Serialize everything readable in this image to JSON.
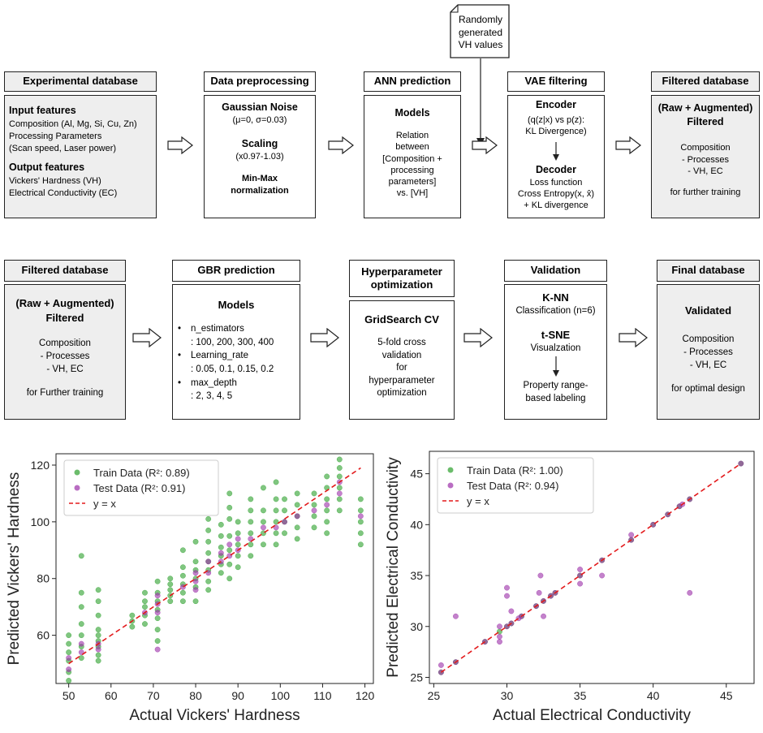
{
  "row1": {
    "random_box": "Randomly generated VH values",
    "experimental": {
      "header": "Experimental database",
      "input_title": "Input features",
      "input_lines": [
        "Composition (Al, Mg, Si, Cu, Zn)",
        "Processing Parameters",
        "(Scan speed, Laser power)"
      ],
      "output_title": "Output features",
      "output_lines": [
        "Vickers' Hardness (VH)",
        "Electrical Conductivity (EC)"
      ]
    },
    "preprocessing": {
      "header": "Data preprocessing",
      "noise_title": "Gaussian Noise",
      "noise_params": "(μ=0, σ=0.03)",
      "scaling_title": "Scaling",
      "scaling_params": "(x0.97-1.03)",
      "minmax_line1": "Min-Max",
      "minmax_line2": "normalization"
    },
    "ann": {
      "header": "ANN prediction",
      "models": "Models",
      "lines": [
        "Relation",
        "between",
        "[Composition +",
        "processing",
        "parameters]",
        "vs. [VH]"
      ]
    },
    "vae": {
      "header": "VAE filtering",
      "encoder": "Encoder",
      "encoder_lines": [
        "(q(z|x) vs p(z):",
        "KL Divergence)"
      ],
      "decoder": "Decoder",
      "decoder_lines": [
        "Loss function",
        "Cross Entropy(x, x̂)",
        "+ KL divergence"
      ]
    },
    "filtered": {
      "header": "Filtered database",
      "title1": "(Raw + Augmented)",
      "title2": "Filtered",
      "lines": [
        "Composition",
        "- Processes",
        "- VH, EC"
      ],
      "footer": "for further training"
    }
  },
  "row2": {
    "filtered": {
      "header": "Filtered database",
      "title1": "(Raw + Augmented)",
      "title2": "Filtered",
      "lines": [
        "Composition",
        "- Processes",
        "- VH, EC"
      ],
      "footer": "for Further training"
    },
    "gbr": {
      "header": "GBR prediction",
      "models": "Models",
      "bullets": [
        {
          "name": "n_estimators",
          "values": ": 100, 200, 300, 400"
        },
        {
          "name": "Learning_rate",
          "values": ": 0.05, 0.1, 0.15, 0.2"
        },
        {
          "name": "max_depth",
          "values": ": 2, 3, 4, 5"
        }
      ]
    },
    "hyper": {
      "header_line1": "Hyperparameter",
      "header_line2": "optimization",
      "title": "GridSearch CV",
      "lines": [
        "5-fold cross",
        "validation",
        "for",
        "hyperparameter",
        "optimization"
      ]
    },
    "validation": {
      "header": "Validation",
      "knn": "K-NN",
      "knn_sub": "Classification (n=6)",
      "tsne": "t-SNE",
      "tsne_sub": "Visualzation",
      "label_lines": [
        "Property range-",
        "based labeling"
      ]
    },
    "final": {
      "header": "Final database",
      "title": "Validated",
      "lines": [
        "Composition",
        "- Processes",
        "- VH, EC"
      ],
      "footer": "for optimal design"
    }
  },
  "chart_data": [
    {
      "type": "scatter",
      "xlabel": "Actual Vickers' Hardness",
      "ylabel": "Predicted Vickers' Hardness",
      "xlim": [
        47,
        122
      ],
      "ylim": [
        43,
        124
      ],
      "xticks": [
        50,
        60,
        70,
        80,
        90,
        100,
        110,
        120
      ],
      "yticks": [
        60,
        80,
        100,
        120
      ],
      "legend": [
        "Train Data (R²: 0.89)",
        "Test Data (R²: 0.91)",
        "y = x"
      ],
      "legend_position": "top-left",
      "colors": {
        "train": "#2ca02c",
        "test": "#9b2fa8",
        "line": "#e31a1c"
      },
      "x_levels": [
        50,
        53,
        57,
        65,
        68,
        71,
        74,
        77,
        80,
        83,
        86,
        88,
        90,
        93,
        96,
        99,
        101,
        104,
        108,
        111,
        114,
        119
      ],
      "series": [
        {
          "name": "Train Data (R²: 0.89)",
          "points": [
            [
              50,
              44
            ],
            [
              50,
              47
            ],
            [
              50,
              51
            ],
            [
              50,
              54
            ],
            [
              50,
              57
            ],
            [
              50,
              60
            ],
            [
              53,
              52
            ],
            [
              53,
              56
            ],
            [
              53,
              60
            ],
            [
              53,
              64
            ],
            [
              53,
              70
            ],
            [
              53,
              75
            ],
            [
              53,
              88
            ],
            [
              57,
              51
            ],
            [
              57,
              53
            ],
            [
              57,
              56
            ],
            [
              57,
              58
            ],
            [
              57,
              60
            ],
            [
              57,
              62
            ],
            [
              57,
              67
            ],
            [
              57,
              72
            ],
            [
              57,
              76
            ],
            [
              65,
              63
            ],
            [
              65,
              65
            ],
            [
              65,
              67
            ],
            [
              68,
              64
            ],
            [
              68,
              67
            ],
            [
              68,
              70
            ],
            [
              68,
              72
            ],
            [
              68,
              75
            ],
            [
              71,
              58
            ],
            [
              71,
              62
            ],
            [
              71,
              66
            ],
            [
              71,
              69
            ],
            [
              71,
              72
            ],
            [
              71,
              75
            ],
            [
              71,
              79
            ],
            [
              74,
              72
            ],
            [
              74,
              74
            ],
            [
              74,
              76
            ],
            [
              74,
              78
            ],
            [
              74,
              80
            ],
            [
              77,
              72
            ],
            [
              77,
              75
            ],
            [
              77,
              78
            ],
            [
              77,
              81
            ],
            [
              77,
              84
            ],
            [
              77,
              90
            ],
            [
              80,
              72
            ],
            [
              80,
              77
            ],
            [
              80,
              80
            ],
            [
              80,
              83
            ],
            [
              80,
              86
            ],
            [
              80,
              93
            ],
            [
              83,
              76
            ],
            [
              83,
              79
            ],
            [
              83,
              83
            ],
            [
              83,
              86
            ],
            [
              83,
              89
            ],
            [
              83,
              93
            ],
            [
              83,
              97
            ],
            [
              83,
              101
            ],
            [
              86,
              82
            ],
            [
              86,
              85
            ],
            [
              86,
              88
            ],
            [
              86,
              91
            ],
            [
              86,
              95
            ],
            [
              86,
              99
            ],
            [
              88,
              80
            ],
            [
              88,
              85
            ],
            [
              88,
              90
            ],
            [
              88,
              95
            ],
            [
              88,
              101
            ],
            [
              88,
              105
            ],
            [
              88,
              110
            ],
            [
              90,
              84
            ],
            [
              90,
              88
            ],
            [
              90,
              92
            ],
            [
              90,
              96
            ],
            [
              90,
              100
            ],
            [
              93,
              88
            ],
            [
              93,
              92
            ],
            [
              93,
              96
            ],
            [
              93,
              100
            ],
            [
              93,
              104
            ],
            [
              93,
              108
            ],
            [
              96,
              92
            ],
            [
              96,
              96
            ],
            [
              96,
              100
            ],
            [
              96,
              104
            ],
            [
              96,
              112
            ],
            [
              99,
              92
            ],
            [
              99,
              96
            ],
            [
              99,
              100
            ],
            [
              99,
              104
            ],
            [
              99,
              108
            ],
            [
              99,
              114
            ],
            [
              101,
              96
            ],
            [
              101,
              100
            ],
            [
              101,
              104
            ],
            [
              101,
              108
            ],
            [
              104,
              94
            ],
            [
              104,
              98
            ],
            [
              104,
              102
            ],
            [
              104,
              106
            ],
            [
              104,
              110
            ],
            [
              108,
              98
            ],
            [
              108,
              102
            ],
            [
              108,
              106
            ],
            [
              108,
              110
            ],
            [
              111,
              96
            ],
            [
              111,
              100
            ],
            [
              111,
              104
            ],
            [
              111,
              108
            ],
            [
              111,
              112
            ],
            [
              111,
              116
            ],
            [
              114,
              104
            ],
            [
              114,
              108
            ],
            [
              114,
              112
            ],
            [
              114,
              116
            ],
            [
              114,
              119
            ],
            [
              114,
              122
            ],
            [
              119,
              92
            ],
            [
              119,
              96
            ],
            [
              119,
              100
            ],
            [
              119,
              104
            ],
            [
              119,
              108
            ]
          ]
        },
        {
          "name": "Test Data (R²: 0.91)",
          "points": [
            [
              50,
              48
            ],
            [
              50,
              52
            ],
            [
              53,
              54
            ],
            [
              53,
              57
            ],
            [
              57,
              55
            ],
            [
              57,
              57
            ],
            [
              68,
              68
            ],
            [
              71,
              55
            ],
            [
              71,
              68
            ],
            [
              71,
              71
            ],
            [
              71,
              74
            ],
            [
              77,
              77
            ],
            [
              80,
              76
            ],
            [
              80,
              79
            ],
            [
              80,
              82
            ],
            [
              83,
              82
            ],
            [
              83,
              86
            ],
            [
              86,
              86
            ],
            [
              86,
              89
            ],
            [
              88,
              88
            ],
            [
              88,
              92
            ],
            [
              90,
              90
            ],
            [
              90,
              94
            ],
            [
              93,
              94
            ],
            [
              96,
              98
            ],
            [
              99,
              98
            ],
            [
              101,
              100
            ],
            [
              104,
              102
            ],
            [
              108,
              104
            ],
            [
              111,
              106
            ],
            [
              114,
              110
            ],
            [
              114,
              114
            ],
            [
              119,
              102
            ]
          ]
        }
      ],
      "fit_line": [
        [
          50,
          50
        ],
        [
          119,
          119
        ]
      ]
    },
    {
      "type": "scatter",
      "xlabel": "Actual Electrical Conductivity",
      "ylabel": "Predicted Electrical Conductivity",
      "xlim": [
        24.7,
        46.9
      ],
      "ylim": [
        24.4,
        47.2
      ],
      "xticks": [
        25,
        30,
        35,
        40,
        45
      ],
      "yticks": [
        25,
        30,
        35,
        40,
        45
      ],
      "legend": [
        "Train Data (R²: 1.00)",
        "Test Data (R²: 0.94)",
        "y = x"
      ],
      "legend_position": "top-left",
      "colors": {
        "train": "#2ca02c",
        "test": "#9b2fa8",
        "line": "#e31a1c"
      },
      "series": [
        {
          "name": "Train Data (R²: 1.00)",
          "points": [
            [
              25.5,
              25.5
            ],
            [
              26.5,
              26.5
            ],
            [
              28.5,
              28.5
            ],
            [
              29.5,
              29.5
            ],
            [
              30.0,
              30.0
            ],
            [
              30.3,
              30.3
            ],
            [
              31.0,
              31.0
            ],
            [
              32.0,
              32.0
            ],
            [
              32.5,
              32.5
            ],
            [
              33.0,
              33.0
            ],
            [
              33.3,
              33.3
            ],
            [
              35.0,
              35.0
            ],
            [
              36.5,
              36.5
            ],
            [
              38.5,
              38.5
            ],
            [
              40.0,
              40.0
            ],
            [
              41.0,
              41.0
            ],
            [
              41.8,
              41.8
            ],
            [
              42.5,
              42.5
            ],
            [
              46.0,
              46.0
            ]
          ]
        },
        {
          "name": "Test Data (R²: 0.94)",
          "points": [
            [
              25.5,
              25.5
            ],
            [
              25.5,
              26.2
            ],
            [
              26.5,
              26.5
            ],
            [
              26.5,
              31.0
            ],
            [
              28.5,
              28.5
            ],
            [
              29.5,
              29.0
            ],
            [
              29.5,
              30.0
            ],
            [
              29.5,
              28.5
            ],
            [
              30.0,
              30.0
            ],
            [
              30.0,
              33.0
            ],
            [
              30.0,
              33.8
            ],
            [
              30.3,
              30.3
            ],
            [
              30.3,
              31.5
            ],
            [
              30.8,
              30.8
            ],
            [
              31.0,
              31.0
            ],
            [
              32.0,
              32.0
            ],
            [
              32.2,
              33.3
            ],
            [
              32.3,
              35.0
            ],
            [
              32.5,
              32.5
            ],
            [
              32.5,
              31.0
            ],
            [
              33.0,
              33.0
            ],
            [
              33.3,
              33.3
            ],
            [
              35.0,
              35.0
            ],
            [
              35.0,
              35.6
            ],
            [
              35.0,
              34.2
            ],
            [
              36.5,
              35.0
            ],
            [
              36.5,
              36.5
            ],
            [
              38.5,
              38.5
            ],
            [
              38.5,
              39.0
            ],
            [
              40.0,
              40.0
            ],
            [
              41.0,
              41.0
            ],
            [
              41.8,
              41.8
            ],
            [
              42.0,
              42.0
            ],
            [
              42.5,
              42.5
            ],
            [
              42.5,
              33.3
            ],
            [
              46.0,
              46.0
            ]
          ]
        }
      ],
      "fit_line": [
        [
          25.5,
          25.5
        ],
        [
          46.0,
          46.0
        ]
      ]
    }
  ]
}
